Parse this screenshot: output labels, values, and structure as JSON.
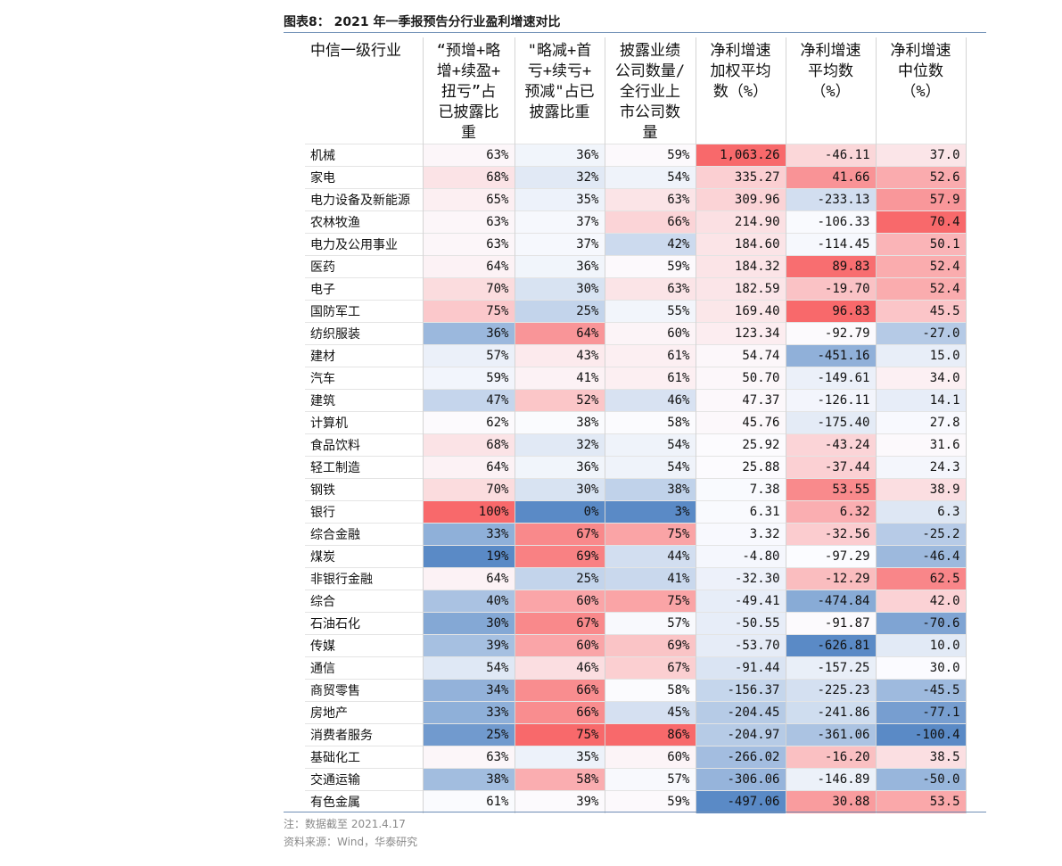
{
  "title": "图表8：  2021 年一季报预告分行业盈利增速对比",
  "headers": [
    "中信一级行业",
    "“预增+略增+续盈+扭亏”占已披露比重",
    "\"略减+首亏+续亏+预减\"占已披露比重",
    "披露业绩公司数量/全行业上市公司数量",
    "净利增速加权平均数（%）",
    "净利增速平均数（%）",
    "净利增速中位数（%）"
  ],
  "header_lines": [
    [
      "中信一级行业"
    ],
    [
      "“预增+略",
      "增+续盈+",
      "扭亏”占",
      "已披露比",
      "重"
    ],
    [
      "\"略减+首",
      "亏+续亏+",
      "预减\"占已",
      "披露比重"
    ],
    [
      "披露业绩",
      "公司数量/",
      "全行业上",
      "市公司数",
      "量"
    ],
    [
      "净利增速",
      "加权平均",
      "数（%）"
    ],
    [
      "净利增速",
      "平均数",
      "（%）"
    ],
    [
      "净利增速",
      "中位数",
      "（%）"
    ]
  ],
  "rows": [
    {
      "name": "机械",
      "c1": "63%",
      "c2": "36%",
      "c3": "59%",
      "c4": "1,063.26",
      "c5": "-46.11",
      "c6": "37.0"
    },
    {
      "name": "家电",
      "c1": "68%",
      "c2": "32%",
      "c3": "54%",
      "c4": "335.27",
      "c5": "41.66",
      "c6": "52.6"
    },
    {
      "name": "电力设备及新能源",
      "c1": "65%",
      "c2": "35%",
      "c3": "63%",
      "c4": "309.96",
      "c5": "-233.13",
      "c6": "57.9"
    },
    {
      "name": "农林牧渔",
      "c1": "63%",
      "c2": "37%",
      "c3": "66%",
      "c4": "214.90",
      "c5": "-106.33",
      "c6": "70.4"
    },
    {
      "name": "电力及公用事业",
      "c1": "63%",
      "c2": "37%",
      "c3": "42%",
      "c4": "184.60",
      "c5": "-114.45",
      "c6": "50.1"
    },
    {
      "name": "医药",
      "c1": "64%",
      "c2": "36%",
      "c3": "59%",
      "c4": "184.32",
      "c5": "89.83",
      "c6": "52.4"
    },
    {
      "name": "电子",
      "c1": "70%",
      "c2": "30%",
      "c3": "63%",
      "c4": "182.59",
      "c5": "-19.70",
      "c6": "52.4"
    },
    {
      "name": "国防军工",
      "c1": "75%",
      "c2": "25%",
      "c3": "55%",
      "c4": "169.40",
      "c5": "96.83",
      "c6": "45.5"
    },
    {
      "name": "纺织服装",
      "c1": "36%",
      "c2": "64%",
      "c3": "60%",
      "c4": "123.34",
      "c5": "-92.79",
      "c6": "-27.0"
    },
    {
      "name": "建材",
      "c1": "57%",
      "c2": "43%",
      "c3": "61%",
      "c4": "54.74",
      "c5": "-451.16",
      "c6": "15.0"
    },
    {
      "name": "汽车",
      "c1": "59%",
      "c2": "41%",
      "c3": "61%",
      "c4": "50.70",
      "c5": "-149.61",
      "c6": "34.0"
    },
    {
      "name": "建筑",
      "c1": "47%",
      "c2": "52%",
      "c3": "46%",
      "c4": "47.37",
      "c5": "-126.11",
      "c6": "14.1"
    },
    {
      "name": "计算机",
      "c1": "62%",
      "c2": "38%",
      "c3": "58%",
      "c4": "45.76",
      "c5": "-175.40",
      "c6": "27.8"
    },
    {
      "name": "食品饮料",
      "c1": "68%",
      "c2": "32%",
      "c3": "54%",
      "c4": "25.92",
      "c5": "-43.24",
      "c6": "31.6"
    },
    {
      "name": "轻工制造",
      "c1": "64%",
      "c2": "36%",
      "c3": "54%",
      "c4": "25.88",
      "c5": "-37.44",
      "c6": "24.3"
    },
    {
      "name": "钢铁",
      "c1": "70%",
      "c2": "30%",
      "c3": "38%",
      "c4": "7.38",
      "c5": "53.55",
      "c6": "38.9"
    },
    {
      "name": "银行",
      "c1": "100%",
      "c2": "0%",
      "c3": "3%",
      "c4": "6.31",
      "c5": "6.32",
      "c6": "6.3"
    },
    {
      "name": "综合金融",
      "c1": "33%",
      "c2": "67%",
      "c3": "75%",
      "c4": "3.32",
      "c5": "-32.56",
      "c6": "-25.2"
    },
    {
      "name": "煤炭",
      "c1": "19%",
      "c2": "69%",
      "c3": "44%",
      "c4": "-4.80",
      "c5": "-97.29",
      "c6": "-46.4"
    },
    {
      "name": "非银行金融",
      "c1": "64%",
      "c2": "25%",
      "c3": "41%",
      "c4": "-32.30",
      "c5": "-12.29",
      "c6": "62.5"
    },
    {
      "name": "综合",
      "c1": "40%",
      "c2": "60%",
      "c3": "75%",
      "c4": "-49.41",
      "c5": "-474.84",
      "c6": "42.0"
    },
    {
      "name": "石油石化",
      "c1": "30%",
      "c2": "67%",
      "c3": "57%",
      "c4": "-50.55",
      "c5": "-91.87",
      "c6": "-70.6"
    },
    {
      "name": "传媒",
      "c1": "39%",
      "c2": "60%",
      "c3": "69%",
      "c4": "-53.70",
      "c5": "-626.81",
      "c6": "10.0"
    },
    {
      "name": "通信",
      "c1": "54%",
      "c2": "46%",
      "c3": "67%",
      "c4": "-91.44",
      "c5": "-157.25",
      "c6": "30.0"
    },
    {
      "name": "商贸零售",
      "c1": "34%",
      "c2": "66%",
      "c3": "58%",
      "c4": "-156.37",
      "c5": "-225.23",
      "c6": "-45.5"
    },
    {
      "name": "房地产",
      "c1": "33%",
      "c2": "66%",
      "c3": "45%",
      "c4": "-204.45",
      "c5": "-241.86",
      "c6": "-77.1"
    },
    {
      "name": "消费者服务",
      "c1": "25%",
      "c2": "75%",
      "c3": "86%",
      "c4": "-204.97",
      "c5": "-361.06",
      "c6": "-100.4"
    },
    {
      "name": "基础化工",
      "c1": "63%",
      "c2": "35%",
      "c3": "60%",
      "c4": "-266.02",
      "c5": "-16.20",
      "c6": "38.5"
    },
    {
      "name": "交通运输",
      "c1": "38%",
      "c2": "58%",
      "c3": "57%",
      "c4": "-306.06",
      "c5": "-146.89",
      "c6": "-50.0"
    },
    {
      "name": "有色金属",
      "c1": "61%",
      "c2": "39%",
      "c3": "59%",
      "c4": "-497.06",
      "c5": "30.88",
      "c6": "53.5"
    }
  ],
  "heatmap_colors": {
    "high": "#f8696b",
    "mid": "#fcfcff",
    "low": "#5a8ac6"
  },
  "note": "注：数据截至 2021.4.17",
  "source": "资料来源：Wind，华泰研究"
}
